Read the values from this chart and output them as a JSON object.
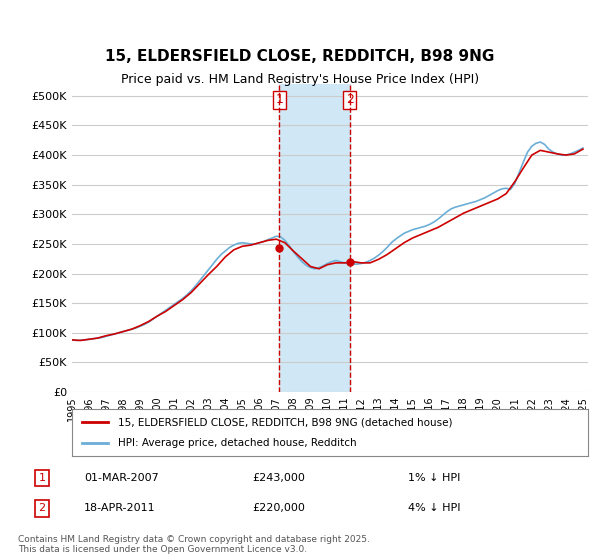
{
  "title": "15, ELDERSFIELD CLOSE, REDDITCH, B98 9NG",
  "subtitle": "Price paid vs. HM Land Registry's House Price Index (HPI)",
  "ylabel_ticks": [
    "£0",
    "£50K",
    "£100K",
    "£150K",
    "£200K",
    "£250K",
    "£300K",
    "£350K",
    "£400K",
    "£450K",
    "£500K"
  ],
  "ytick_values": [
    0,
    50000,
    100000,
    150000,
    200000,
    250000,
    300000,
    350000,
    400000,
    450000,
    500000
  ],
  "ylim": [
    0,
    520000
  ],
  "legend_line1": "15, ELDERSFIELD CLOSE, REDDITCH, B98 9NG (detached house)",
  "legend_line2": "HPI: Average price, detached house, Redditch",
  "annotation1_label": "1",
  "annotation1_date": "01-MAR-2007",
  "annotation1_price": "£243,000",
  "annotation1_pct": "1% ↓ HPI",
  "annotation2_label": "2",
  "annotation2_date": "18-APR-2011",
  "annotation2_price": "£220,000",
  "annotation2_pct": "4% ↓ HPI",
  "footer": "Contains HM Land Registry data © Crown copyright and database right 2025.\nThis data is licensed under the Open Government Licence v3.0.",
  "sale1_x": 2007.17,
  "sale1_y": 243000,
  "sale2_x": 2011.3,
  "sale2_y": 220000,
  "vline1_x": 2007.17,
  "vline2_x": 2011.3,
  "shade_xmin": 2007.17,
  "shade_xmax": 2011.3,
  "hpi_color": "#6baed6",
  "price_color": "#cc0000",
  "shade_color": "#d0e8f5",
  "vline_color": "#cc0000",
  "grid_color": "#cccccc",
  "background_color": "#ffffff",
  "hpi_data_x": [
    1995,
    1995.25,
    1995.5,
    1995.75,
    1996,
    1996.25,
    1996.5,
    1996.75,
    1997,
    1997.25,
    1997.5,
    1997.75,
    1998,
    1998.25,
    1998.5,
    1998.75,
    1999,
    1999.25,
    1999.5,
    1999.75,
    2000,
    2000.25,
    2000.5,
    2000.75,
    2001,
    2001.25,
    2001.5,
    2001.75,
    2002,
    2002.25,
    2002.5,
    2002.75,
    2003,
    2003.25,
    2003.5,
    2003.75,
    2004,
    2004.25,
    2004.5,
    2004.75,
    2005,
    2005.25,
    2005.5,
    2005.75,
    2006,
    2006.25,
    2006.5,
    2006.75,
    2007,
    2007.25,
    2007.5,
    2007.75,
    2008,
    2008.25,
    2008.5,
    2008.75,
    2009,
    2009.25,
    2009.5,
    2009.75,
    2010,
    2010.25,
    2010.5,
    2010.75,
    2011,
    2011.25,
    2011.5,
    2011.75,
    2012,
    2012.25,
    2012.5,
    2012.75,
    2013,
    2013.25,
    2013.5,
    2013.75,
    2014,
    2014.25,
    2014.5,
    2014.75,
    2015,
    2015.25,
    2015.5,
    2015.75,
    2016,
    2016.25,
    2016.5,
    2016.75,
    2017,
    2017.25,
    2017.5,
    2017.75,
    2018,
    2018.25,
    2018.5,
    2018.75,
    2019,
    2019.25,
    2019.5,
    2019.75,
    2020,
    2020.25,
    2020.5,
    2020.75,
    2021,
    2021.25,
    2021.5,
    2021.75,
    2022,
    2022.25,
    2022.5,
    2022.75,
    2023,
    2023.25,
    2023.5,
    2023.75,
    2024,
    2024.25,
    2024.5,
    2024.75,
    2025
  ],
  "hpi_data_y": [
    88000,
    87000,
    87500,
    88000,
    89000,
    90000,
    91000,
    92000,
    94000,
    96000,
    98000,
    100000,
    102000,
    104000,
    106000,
    108000,
    111000,
    114000,
    118000,
    123000,
    128000,
    133000,
    138000,
    143000,
    148000,
    153000,
    158000,
    164000,
    171000,
    179000,
    188000,
    197000,
    206000,
    215000,
    224000,
    232000,
    238000,
    244000,
    248000,
    251000,
    252000,
    251000,
    250000,
    250000,
    252000,
    254000,
    257000,
    260000,
    263000,
    262000,
    256000,
    247000,
    237000,
    228000,
    220000,
    214000,
    210000,
    208000,
    210000,
    213000,
    217000,
    220000,
    222000,
    220000,
    218000,
    217000,
    216000,
    216000,
    217000,
    219000,
    222000,
    226000,
    231000,
    237000,
    244000,
    252000,
    258000,
    263000,
    268000,
    271000,
    274000,
    276000,
    278000,
    280000,
    283000,
    287000,
    292000,
    298000,
    304000,
    309000,
    312000,
    314000,
    316000,
    318000,
    320000,
    322000,
    325000,
    328000,
    332000,
    336000,
    340000,
    343000,
    344000,
    342000,
    352000,
    370000,
    388000,
    405000,
    415000,
    420000,
    422000,
    418000,
    410000,
    405000,
    402000,
    400000,
    400000,
    402000,
    405000,
    408000,
    412000
  ],
  "price_data_x": [
    1995,
    1995.5,
    1996,
    1996.5,
    1997,
    1997.5,
    1998,
    1998.5,
    1999,
    1999.5,
    2000,
    2000.5,
    2001,
    2001.5,
    2002,
    2002.5,
    2003,
    2003.5,
    2004,
    2004.5,
    2005,
    2005.5,
    2006,
    2006.5,
    2007,
    2007.5,
    2008,
    2008.5,
    2009,
    2009.5,
    2010,
    2010.5,
    2011,
    2011.5,
    2012,
    2012.5,
    2013,
    2013.5,
    2014,
    2014.5,
    2015,
    2015.5,
    2016,
    2016.5,
    2017,
    2017.5,
    2018,
    2018.5,
    2019,
    2019.5,
    2020,
    2020.5,
    2021,
    2021.5,
    2022,
    2022.5,
    2023,
    2023.5,
    2024,
    2024.5,
    2025
  ],
  "price_data_y": [
    88000,
    87000,
    89000,
    91000,
    95000,
    98000,
    102000,
    106000,
    112000,
    119000,
    128000,
    136000,
    146000,
    156000,
    168000,
    183000,
    198000,
    212000,
    228000,
    240000,
    246000,
    248000,
    252000,
    256000,
    258000,
    252000,
    238000,
    225000,
    212000,
    208000,
    215000,
    218000,
    218000,
    220000,
    218000,
    218000,
    224000,
    232000,
    242000,
    252000,
    260000,
    266000,
    272000,
    278000,
    286000,
    294000,
    302000,
    308000,
    314000,
    320000,
    326000,
    335000,
    355000,
    378000,
    400000,
    408000,
    405000,
    402000,
    400000,
    402000,
    410000
  ],
  "xtick_years": [
    1995,
    1996,
    1997,
    1998,
    1999,
    2000,
    2001,
    2002,
    2003,
    2004,
    2005,
    2006,
    2007,
    2008,
    2009,
    2010,
    2011,
    2012,
    2013,
    2014,
    2015,
    2016,
    2017,
    2018,
    2019,
    2020,
    2021,
    2022,
    2023,
    2024,
    2025
  ]
}
